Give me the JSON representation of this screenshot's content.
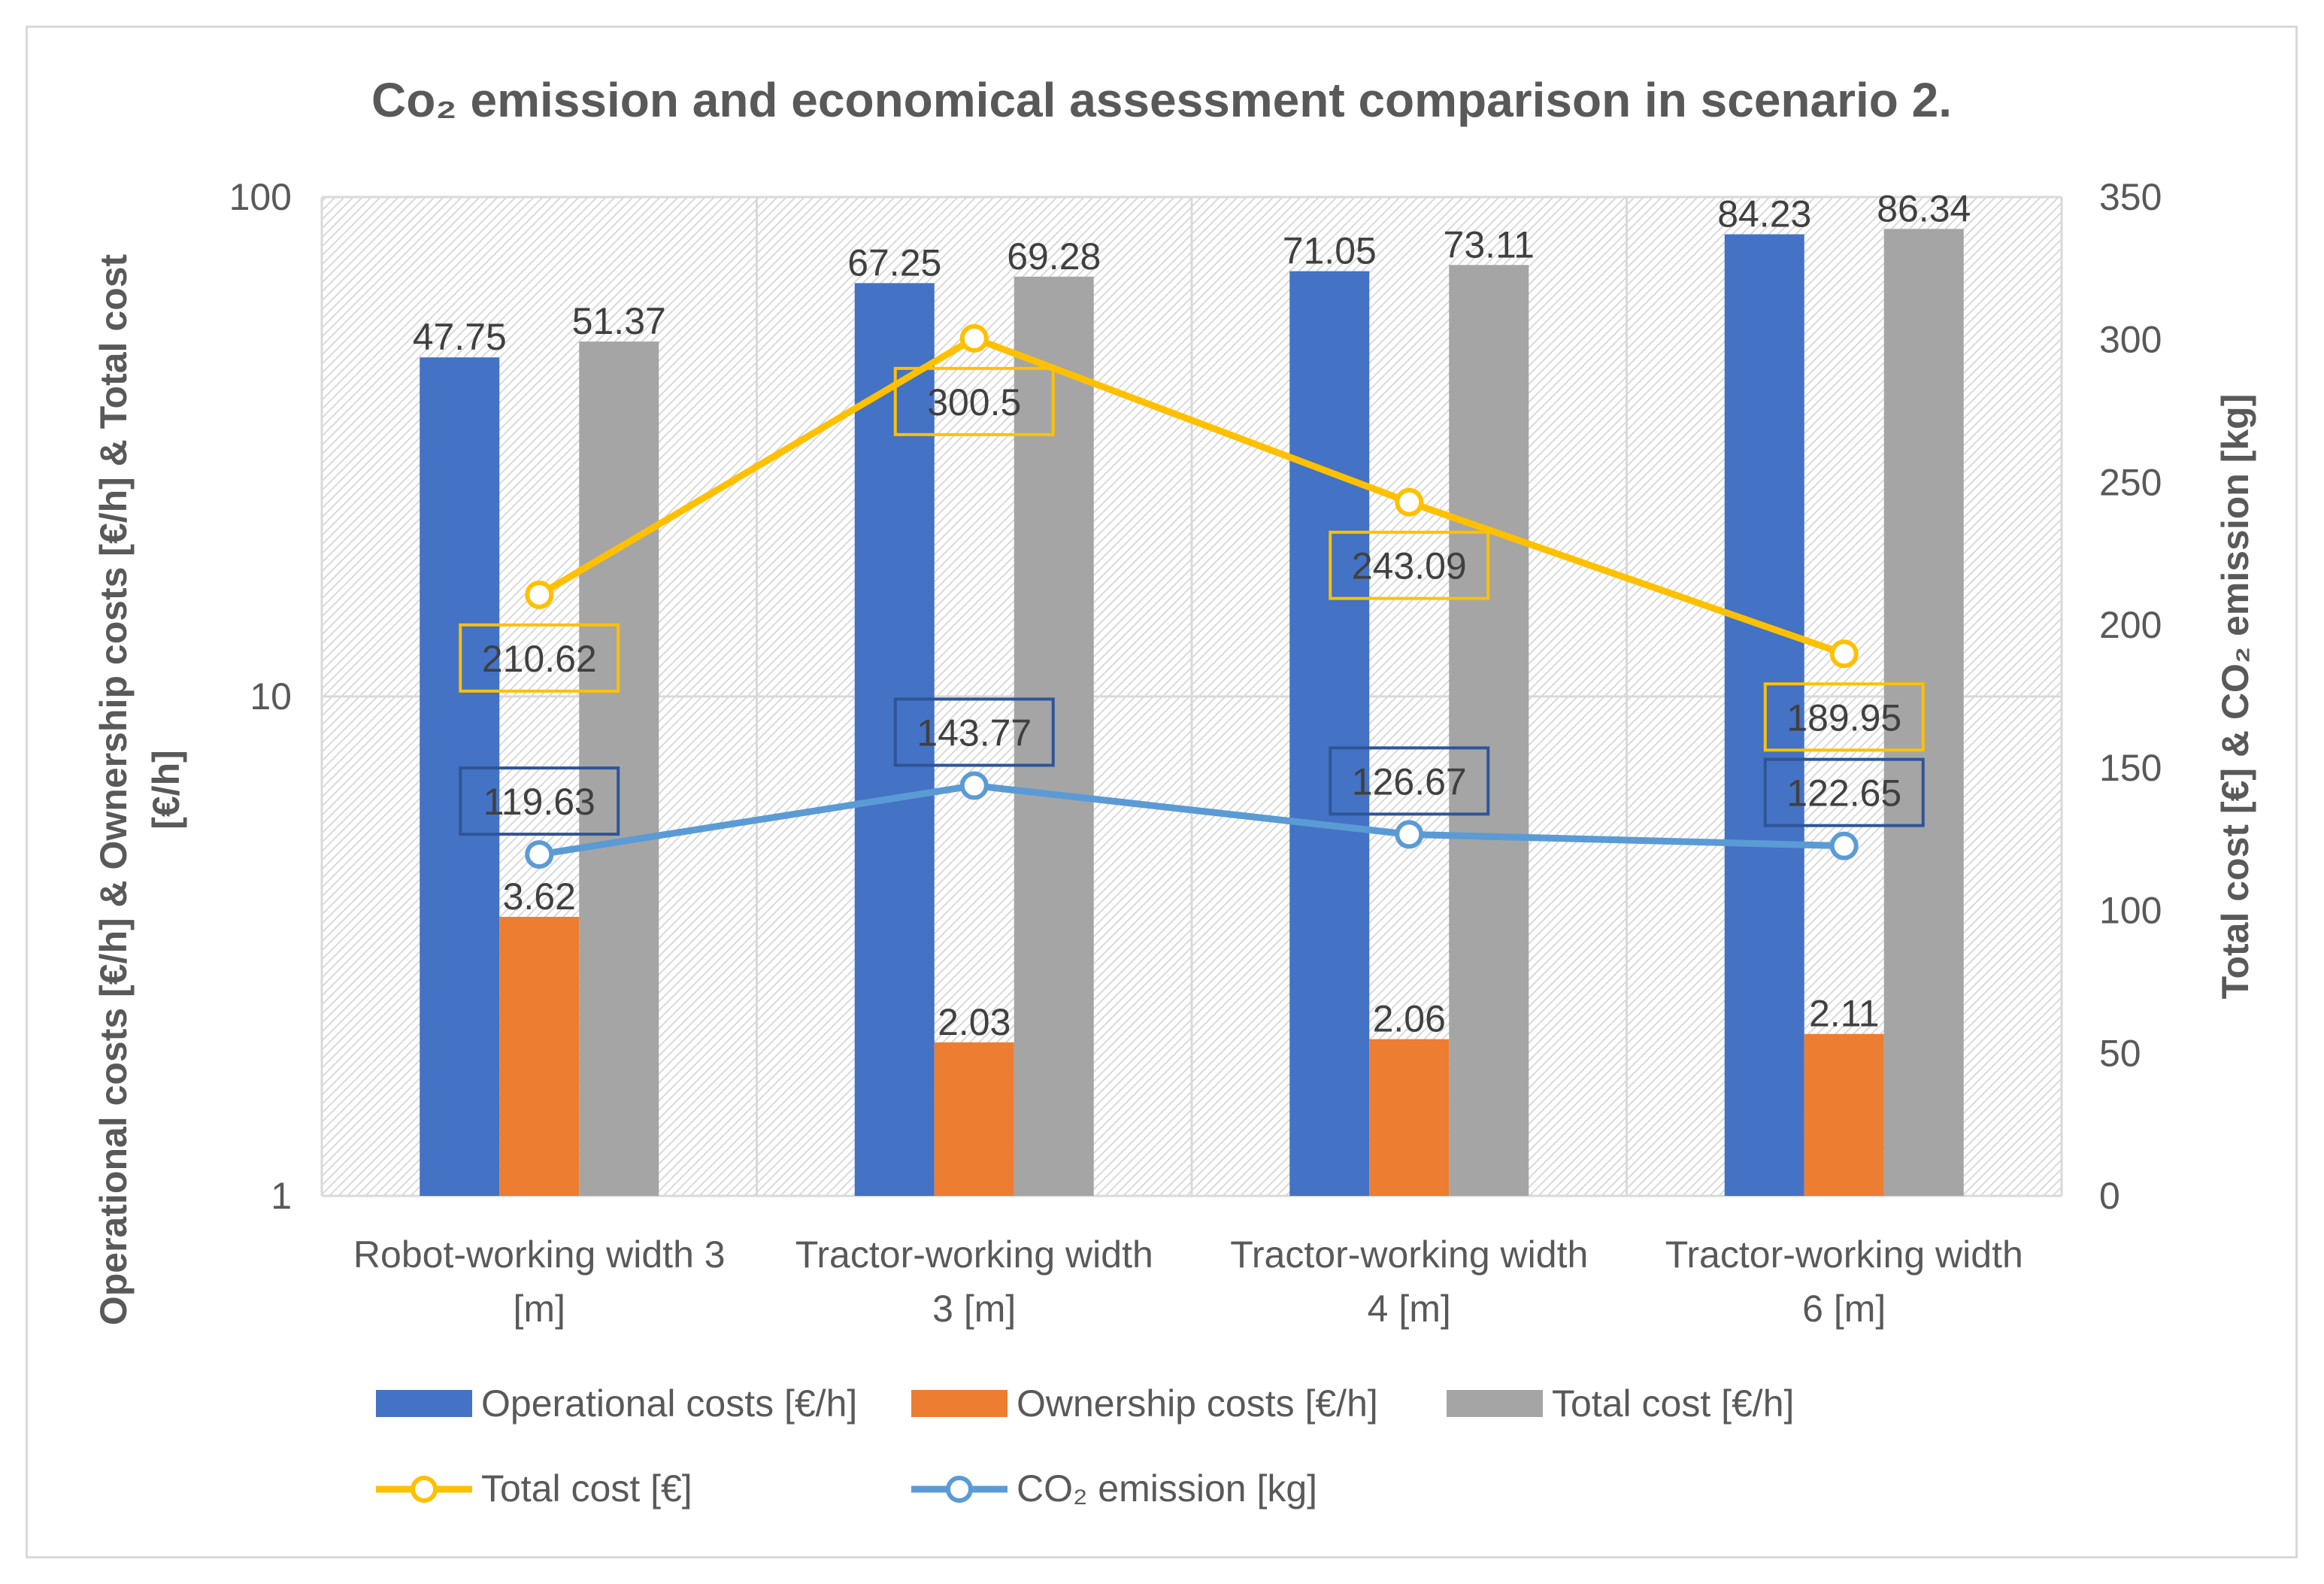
{
  "chart_data": {
    "type": "bar",
    "title": "Co₂ emission and economical assessment comparison in scenario 2.",
    "categories": [
      [
        "Robot-working width 3",
        "[m]"
      ],
      [
        "Tractor-working width",
        "3 [m]"
      ],
      [
        "Tractor-working width",
        "4 [m]"
      ],
      [
        "Tractor-working width",
        "6 [m]"
      ]
    ],
    "y_left": {
      "label_lines": [
        "Operational costs [€/h] & Ownership costs [€/h] & Total cost",
        "[€/h]"
      ],
      "scale": "log",
      "ylim": [
        1,
        100
      ],
      "ticks": [
        1,
        10,
        100
      ],
      "tick_labels": [
        "1",
        "10",
        "100"
      ]
    },
    "y_right": {
      "label": "Total cost [€] & CO₂ emission [kg]",
      "scale": "linear",
      "ylim": [
        0,
        350
      ],
      "ticks": [
        0,
        50,
        100,
        150,
        200,
        250,
        300,
        350
      ],
      "tick_labels": [
        "0",
        "50",
        "100",
        "150",
        "200",
        "250",
        "300",
        "350"
      ]
    },
    "bar_series": [
      {
        "name": "Operational costs [€/h]",
        "color": "#4472c4",
        "values": [
          47.75,
          67.25,
          71.05,
          84.23
        ],
        "labels": [
          "47.75",
          "67.25",
          "71.05",
          "84.23"
        ]
      },
      {
        "name": "Ownership costs [€/h]",
        "color": "#ed7d31",
        "values": [
          3.62,
          2.03,
          2.06,
          2.11
        ],
        "labels": [
          "3.62",
          "2.03",
          "2.06",
          "2.11"
        ]
      },
      {
        "name": "Total cost [€/h]",
        "color": "#a5a5a5",
        "values": [
          51.37,
          69.28,
          73.11,
          86.34
        ],
        "labels": [
          "51.37",
          "69.28",
          "73.11",
          "86.34"
        ]
      }
    ],
    "line_series": [
      {
        "name": "Total cost [€]",
        "color": "#ffc000",
        "axis": "right",
        "values": [
          210.62,
          300.5,
          243.09,
          189.95
        ],
        "labels": [
          "210.62",
          "300.5",
          "243.09",
          "189.95"
        ]
      },
      {
        "name": "CO₂ emission [kg]",
        "color": "#5b9bd5",
        "axis": "right",
        "values": [
          119.63,
          143.77,
          126.67,
          122.65
        ],
        "labels": [
          "119.63",
          "143.77",
          "126.67",
          "122.65"
        ],
        "label_border": "#2f5597"
      }
    ],
    "legend_position": "bottom",
    "grid": true
  }
}
